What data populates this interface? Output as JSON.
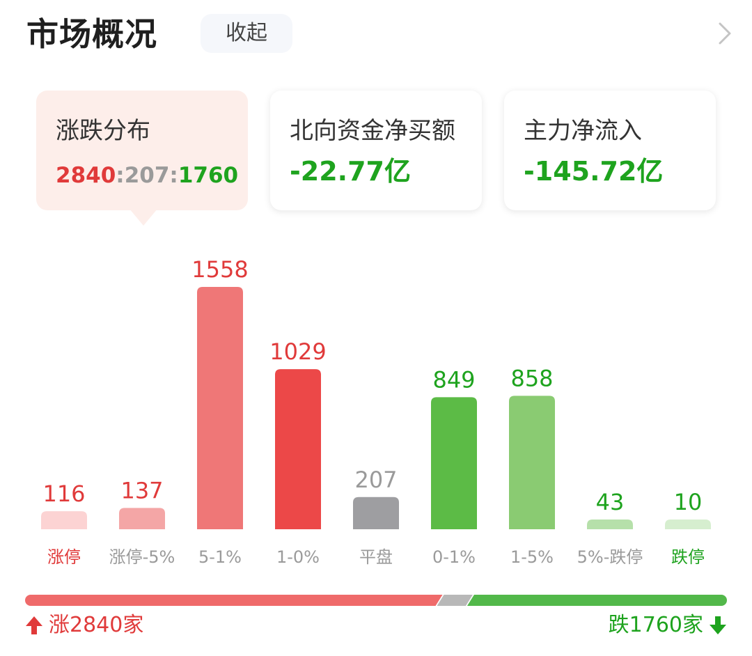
{
  "header": {
    "title": "市场概况",
    "collapse_label": "收起",
    "chevron_icon": "chevron-right-icon"
  },
  "cards": [
    {
      "label": "涨跌分布",
      "ratio": {
        "up": "2840",
        "sep1": ":",
        "flat": "207",
        "sep2": ":",
        "down": "1760"
      }
    },
    {
      "label": "北向资金净买额",
      "value": "-22.77亿"
    },
    {
      "label": "主力净流入",
      "value": "-145.72亿"
    }
  ],
  "colors": {
    "up": "#e03a3a",
    "flat": "#9a9a9a",
    "down": "#1ea31e"
  },
  "chart_data": {
    "type": "bar",
    "categories": [
      "涨停",
      "涨停-5%",
      "5-1%",
      "1-0%",
      "平盘",
      "0-1%",
      "1-5%",
      "5%-跌停",
      "跌停"
    ],
    "values": [
      116,
      137,
      1558,
      1029,
      207,
      849,
      858,
      43,
      10
    ],
    "bar_colors": [
      "#fcd3d3",
      "#f4a6a6",
      "#ef7777",
      "#ec4848",
      "#9e9ea1",
      "#5cbb46",
      "#8acb72",
      "#b6e0aa",
      "#d6eecf"
    ],
    "value_colors": [
      "#e03a3a",
      "#e03a3a",
      "#e03a3a",
      "#e03a3a",
      "#9a9a9a",
      "#1ea31e",
      "#1ea31e",
      "#1ea31e",
      "#1ea31e"
    ],
    "label_colors": [
      "#e03a3a",
      "#9a9a9a",
      "#9a9a9a",
      "#9a9a9a",
      "#9a9a9a",
      "#9a9a9a",
      "#9a9a9a",
      "#9a9a9a",
      "#1ea31e"
    ],
    "ylim": [
      0,
      1558
    ],
    "grid": false,
    "title": "",
    "xlabel": "",
    "ylabel": ""
  },
  "summary": {
    "rise_text": "涨2840家",
    "fall_text": "跌1760家",
    "rise_count": 2840,
    "flat_count": 207,
    "fall_count": 1760,
    "rise_icon": "arrow-up-icon",
    "fall_icon": "arrow-down-icon"
  }
}
